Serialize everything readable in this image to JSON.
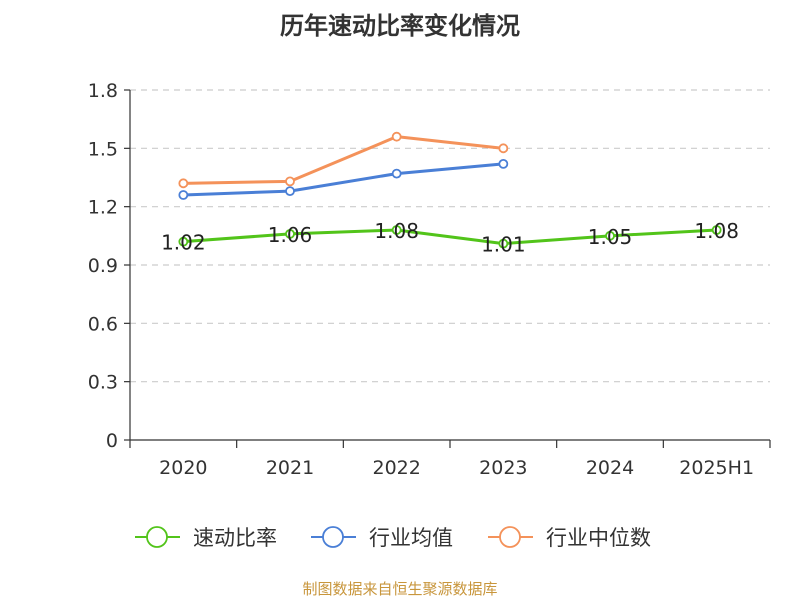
{
  "chart_data": {
    "type": "line",
    "title": "历年速动比率变化情况",
    "categories": [
      "2020",
      "2021",
      "2022",
      "2023",
      "2024",
      "2025H1"
    ],
    "ylim": [
      0,
      1.8
    ],
    "yticks": [
      "0",
      "0.3",
      "0.6",
      "0.9",
      "1.2",
      "1.5",
      "1.8"
    ],
    "grid": "horizontal-dashed",
    "legend_position": "bottom",
    "series": [
      {
        "name": "速动比率",
        "color": "#52c41a",
        "values": [
          1.02,
          1.06,
          1.08,
          1.01,
          1.05,
          1.08
        ],
        "labels": [
          "1.02",
          "1.06",
          "1.08",
          "1.01",
          "1.05",
          "1.08"
        ],
        "show_labels": true
      },
      {
        "name": "行业均值",
        "color": "#4a7fd6",
        "values": [
          1.26,
          1.28,
          1.37,
          1.42,
          null,
          null
        ],
        "show_labels": false
      },
      {
        "name": "行业中位数",
        "color": "#f4925a",
        "values": [
          1.32,
          1.33,
          1.56,
          1.5,
          null,
          null
        ],
        "show_labels": false
      }
    ]
  },
  "source_note": "制图数据来自恒生聚源数据库"
}
